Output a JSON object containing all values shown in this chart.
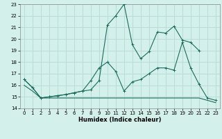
{
  "xlabel": "Humidex (Indice chaleur)",
  "background_color": "#d4f0ea",
  "grid_color": "#b8ddd8",
  "line_color": "#1a6b5e",
  "xlim": [
    -0.5,
    23.5
  ],
  "ylim": [
    14,
    23
  ],
  "x_ticks": [
    0,
    1,
    2,
    3,
    4,
    5,
    6,
    7,
    8,
    9,
    10,
    11,
    12,
    13,
    14,
    15,
    16,
    17,
    18,
    19,
    20,
    21,
    22,
    23
  ],
  "y_ticks": [
    14,
    15,
    16,
    17,
    18,
    19,
    20,
    21,
    22,
    23
  ],
  "line_top_x": [
    0,
    1,
    2,
    3,
    4,
    5,
    6,
    7,
    8,
    9,
    10,
    11,
    12,
    13,
    14,
    15,
    16,
    17,
    18,
    19,
    20,
    21
  ],
  "line_top_y": [
    16.5,
    15.8,
    14.9,
    15.0,
    15.1,
    15.2,
    15.35,
    15.5,
    15.6,
    16.4,
    21.2,
    22.0,
    23.0,
    19.5,
    18.3,
    18.9,
    20.6,
    20.5,
    21.1,
    19.9,
    19.7,
    19.0
  ],
  "line_mid_x": [
    0,
    1,
    2,
    3,
    4,
    5,
    6,
    7,
    8,
    9,
    10,
    11,
    12,
    13,
    14,
    15,
    16,
    17,
    18,
    19,
    20,
    21,
    22,
    23
  ],
  "line_mid_y": [
    16.5,
    15.8,
    14.9,
    15.0,
    15.1,
    15.2,
    15.35,
    15.5,
    16.4,
    17.5,
    18.0,
    17.2,
    15.5,
    16.3,
    16.5,
    17.0,
    17.5,
    17.5,
    17.3,
    19.7,
    17.5,
    16.1,
    14.9,
    14.7
  ],
  "line_bot_x": [
    0,
    1,
    2,
    3,
    4,
    5,
    6,
    7,
    8,
    9,
    10,
    11,
    12,
    13,
    14,
    15,
    16,
    17,
    18,
    19,
    20,
    21,
    22,
    23
  ],
  "line_bot_y": [
    16.0,
    15.5,
    14.9,
    14.9,
    14.9,
    14.9,
    14.9,
    14.9,
    14.9,
    14.9,
    14.9,
    14.9,
    14.9,
    14.9,
    14.9,
    14.9,
    14.9,
    14.9,
    14.9,
    14.9,
    14.9,
    14.9,
    14.7,
    14.5
  ]
}
